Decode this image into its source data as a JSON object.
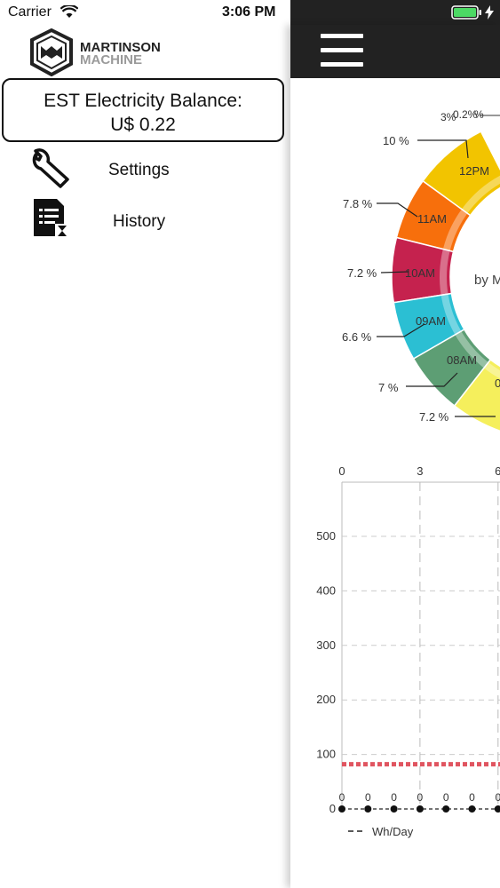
{
  "status_bar": {
    "carrier": "Carrier",
    "time": "3:06 PM",
    "battery_color": "#4cd964",
    "icons": [
      "wifi-icon",
      "battery-icon",
      "charging-bolt-icon"
    ]
  },
  "side_menu": {
    "logo": {
      "line1": "MARTINSON",
      "line2": "MACHINE"
    },
    "balance_line1": "EST Electricity Balance:",
    "balance_line2": "U$ 0.22",
    "items": [
      {
        "label": "Settings",
        "icon": "wrench-icon"
      },
      {
        "label": "History",
        "icon": "history-icon"
      }
    ]
  },
  "main": {
    "topbar": {
      "icon": "hamburger-menu-icon",
      "background": "#222222"
    },
    "donut": {
      "center_label": "by M",
      "segments": [
        {
          "label": "12PM",
          "percent": "10 %",
          "color": "#f2c400"
        },
        {
          "label": "11AM",
          "percent": "7.8 %",
          "color": "#f76f0c"
        },
        {
          "label": "10AM",
          "percent": "7.2 %",
          "color": "#c5224e"
        },
        {
          "label": "09AM",
          "percent": "6.6 %",
          "color": "#2bbfd3"
        },
        {
          "label": "08AM",
          "percent": "7 %",
          "color": "#5d9e74"
        },
        {
          "label": "0",
          "percent": "7.2 %",
          "color": "#f5ef5c"
        }
      ],
      "overlap_label_top": "3%",
      "overlap_label_mid": "0.2%",
      "overlap_label_last": "%"
    },
    "line_chart": {
      "x_ticks": [
        "0",
        "3",
        "6"
      ],
      "y_ticks": [
        "500",
        "400",
        "300",
        "200",
        "100",
        "0"
      ],
      "point_values": [
        "0",
        "0",
        "0",
        "0",
        "0",
        "0",
        "0"
      ],
      "reference_line_color": "#e05560",
      "legend_label": "Wh/Day"
    }
  },
  "chart_data": {
    "type": "line",
    "x": [
      0,
      1,
      2,
      3,
      4,
      5,
      6
    ],
    "series": [
      {
        "name": "Wh/Day",
        "values": [
          0,
          0,
          0,
          0,
          0,
          0,
          0
        ]
      }
    ],
    "reference_line_y": 82,
    "xlim_visible": [
      0,
      6
    ],
    "ylim": [
      0,
      550
    ],
    "grid": true,
    "legend": "bottom-left"
  }
}
